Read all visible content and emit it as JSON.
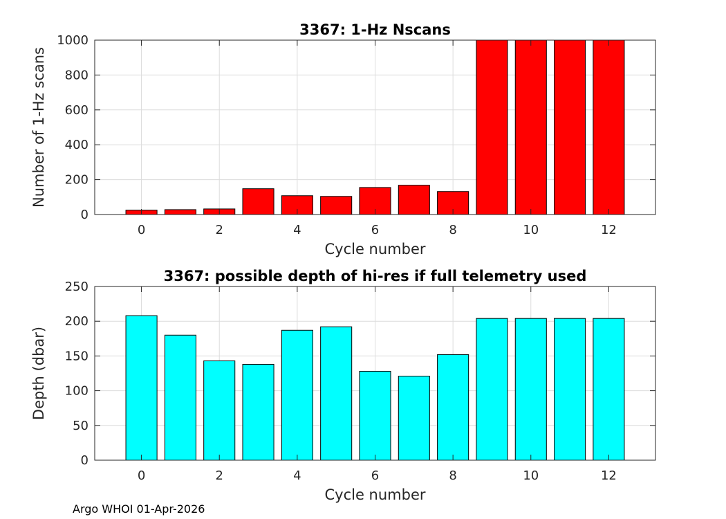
{
  "chart_data": [
    {
      "type": "bar",
      "title": "3367: 1-Hz Nscans",
      "xlabel": "Cycle number",
      "ylabel": "Number of 1-Hz scans",
      "x": [
        0,
        1,
        2,
        3,
        4,
        5,
        6,
        7,
        8,
        9,
        10,
        11,
        12
      ],
      "values": [
        25,
        28,
        32,
        148,
        108,
        104,
        155,
        168,
        132,
        1000,
        1000,
        1000,
        1000
      ],
      "xlim": [
        -1.2,
        13.2
      ],
      "ylim": [
        0,
        1000
      ],
      "xticks": [
        0,
        2,
        4,
        6,
        8,
        10,
        12
      ],
      "yticks": [
        0,
        200,
        400,
        600,
        800,
        1000
      ],
      "bar_color": "#ff0000",
      "grid": true
    },
    {
      "type": "bar",
      "title": "3367: possible depth of hi-res if full telemetry used",
      "xlabel": "Cycle number",
      "ylabel": "Depth (dbar)",
      "x": [
        0,
        1,
        2,
        3,
        4,
        5,
        6,
        7,
        8,
        9,
        10,
        11,
        12
      ],
      "values": [
        208,
        180,
        143,
        138,
        187,
        192,
        128,
        121,
        152,
        204,
        204,
        204,
        204
      ],
      "xlim": [
        -1.2,
        13.2
      ],
      "ylim": [
        0,
        250
      ],
      "xticks": [
        0,
        2,
        4,
        6,
        8,
        10,
        12
      ],
      "yticks": [
        0,
        50,
        100,
        150,
        200,
        250
      ],
      "bar_color": "#00ffff",
      "grid": true
    }
  ],
  "footer": "Argo WHOI 01-Apr-2026"
}
